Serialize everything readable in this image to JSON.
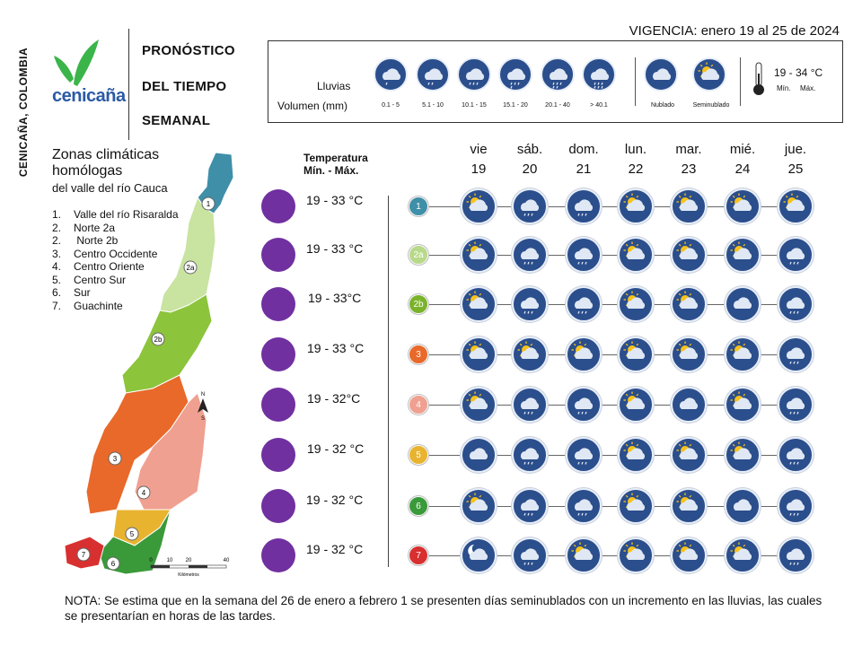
{
  "org": {
    "side_title": "CENICAÑA, COLOMBIA",
    "logo_text": "cenicaña"
  },
  "header": {
    "line1": "PRONÓSTICO",
    "line2": "DEL TIEMPO",
    "line3": "SEMANAL",
    "vigencia": "VIGENCIA: enero 19 al 25 de 2024"
  },
  "legend": {
    "lluvias": "Lluvias",
    "volumen": "Volumen (mm)",
    "ranges": [
      "0.1 - 5",
      "5.1 - 10",
      "10.1 - 15",
      "15.1 - 20",
      "20.1 - 40",
      "> 40.1"
    ],
    "nublado": "Nublado",
    "seminublado": "Seminublado",
    "temp_range": "19 - 34 °C",
    "min": "Mín.",
    "max": "Máx."
  },
  "zones": {
    "title_line1": "Zonas climáticas",
    "title_line2": "homólogas",
    "subtitle": "del valle del río Cauca",
    "items": [
      {
        "n": "1.",
        "label": "Valle del río Risaralda"
      },
      {
        "n": "2.",
        "label": "Norte 2a"
      },
      {
        "n": "2.",
        "label": " Norte 2b"
      },
      {
        "n": "3.",
        "label": "Centro Occidente"
      },
      {
        "n": "4.",
        "label": "Centro Oriente"
      },
      {
        "n": "5.",
        "label": "Centro Sur"
      },
      {
        "n": "6.",
        "label": "Sur"
      },
      {
        "n": "7.",
        "label": "Guachinte"
      }
    ]
  },
  "map": {
    "scale_labels": [
      "0",
      "10",
      "20",
      "40"
    ],
    "scale_unit": "Kilómetros",
    "north": "N",
    "south": "S"
  },
  "table": {
    "temp_header_1": "Temperatura",
    "temp_header_2": "Mín. -  Máx.",
    "days": [
      {
        "name": "vie",
        "date": "19"
      },
      {
        "name": "sáb.",
        "date": "20"
      },
      {
        "name": "dom.",
        "date": "21"
      },
      {
        "name": "lun.",
        "date": "22"
      },
      {
        "name": "mar.",
        "date": "23"
      },
      {
        "name": "mié.",
        "date": "24"
      },
      {
        "name": "jue.",
        "date": "25"
      }
    ],
    "rows": [
      {
        "zone": "1",
        "color": "#3f8fa8",
        "temp": "19 - 33 °C",
        "icons": [
          "sun-cloud",
          "rain",
          "rain",
          "sun-cloud",
          "sun-cloud",
          "sun-cloud",
          "sun-cloud"
        ]
      },
      {
        "zone": "2a",
        "color": "#b8d98a",
        "temp": "19 - 33 °C",
        "icons": [
          "sun-cloud",
          "rain",
          "rain",
          "sun-cloud",
          "sun-cloud",
          "sun-cloud",
          "rain"
        ]
      },
      {
        "zone": "2b",
        "color": "#7ab32a",
        "temp": "19 - 33°C",
        "icons": [
          "sun-cloud",
          "rain",
          "rain",
          "sun-cloud",
          "sun-cloud",
          "cloud",
          "rain"
        ]
      },
      {
        "zone": "3",
        "color": "#e8692a",
        "temp": "19 - 33 °C",
        "icons": [
          "sun-cloud",
          "sun-cloud",
          "sun-cloud",
          "sun-cloud",
          "sun-cloud",
          "sun-cloud",
          "rain"
        ]
      },
      {
        "zone": "4",
        "color": "#f0a090",
        "temp": "19 - 32°C",
        "icons": [
          "sun-cloud",
          "rain",
          "rain",
          "sun-cloud",
          "cloud",
          "sun-cloud",
          "rain"
        ]
      },
      {
        "zone": "5",
        "color": "#e8b430",
        "temp": "19 - 32 °C",
        "icons": [
          "cloud",
          "rain",
          "rain",
          "sun-cloud",
          "sun-cloud",
          "sun-cloud",
          "rain"
        ]
      },
      {
        "zone": "6",
        "color": "#3a9a3a",
        "temp": "19 - 32 °C",
        "icons": [
          "sun-cloud",
          "rain",
          "rain",
          "sun-cloud",
          "sun-cloud",
          "cloud",
          "rain"
        ]
      },
      {
        "zone": "7",
        "color": "#d83030",
        "temp": "19 - 32 °C",
        "icons": [
          "moon-cloud",
          "rain",
          "sun-cloud",
          "sun-cloud",
          "sun-cloud",
          "sun-cloud",
          "rain"
        ]
      }
    ]
  },
  "note": "NOTA: Se estima que en la semana del 26 de enero a febrero 1 se presenten días seminublados con un incremento en las lluvias, las cuales se presentarían en horas de las tardes."
}
